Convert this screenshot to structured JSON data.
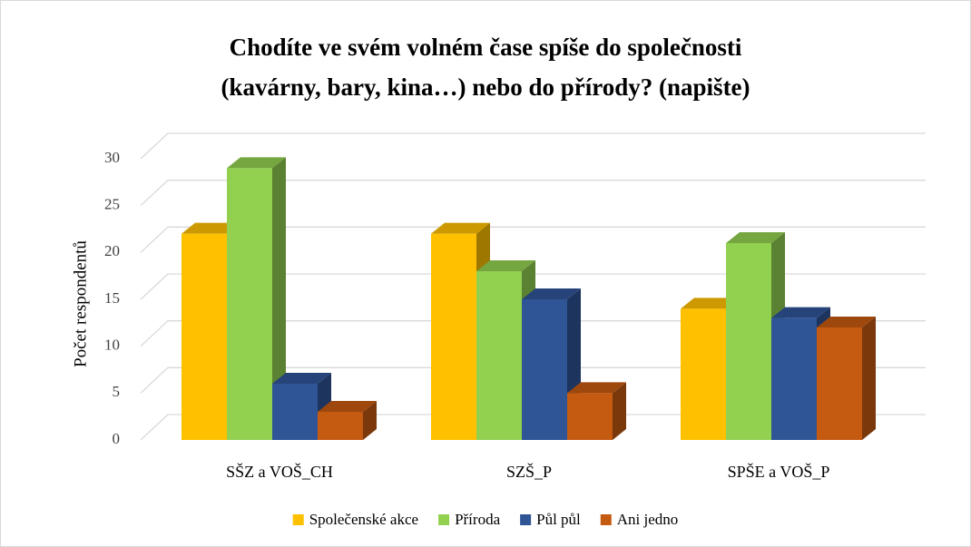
{
  "chart_data": {
    "type": "bar3d",
    "title": [
      "Chodíte ve svém volném čase spíše do společnosti",
      "(kavárny, bary, kina…) nebo do přírody? (napište)"
    ],
    "y_label": "Počet respondentů",
    "categories": [
      "SŠZ a VOŠ_CH",
      "SZŠ_P",
      "SPŠE a VOŠ_P"
    ],
    "series": [
      {
        "name": "Společenské akce",
        "color": "#ffc000",
        "values": [
          22,
          22,
          14
        ]
      },
      {
        "name": "Příroda",
        "color": "#92d050",
        "values": [
          29,
          18,
          21
        ]
      },
      {
        "name": "Půl půl",
        "color": "#2f5597",
        "values": [
          6,
          15,
          13
        ]
      },
      {
        "name": "Ani jedno",
        "color": "#c55a11",
        "values": [
          3,
          5,
          12
        ]
      }
    ],
    "ylim": [
      0,
      30
    ],
    "yticks": [
      0,
      5,
      10,
      15,
      20,
      25,
      30
    ],
    "grid": true,
    "legend": "bottom"
  }
}
